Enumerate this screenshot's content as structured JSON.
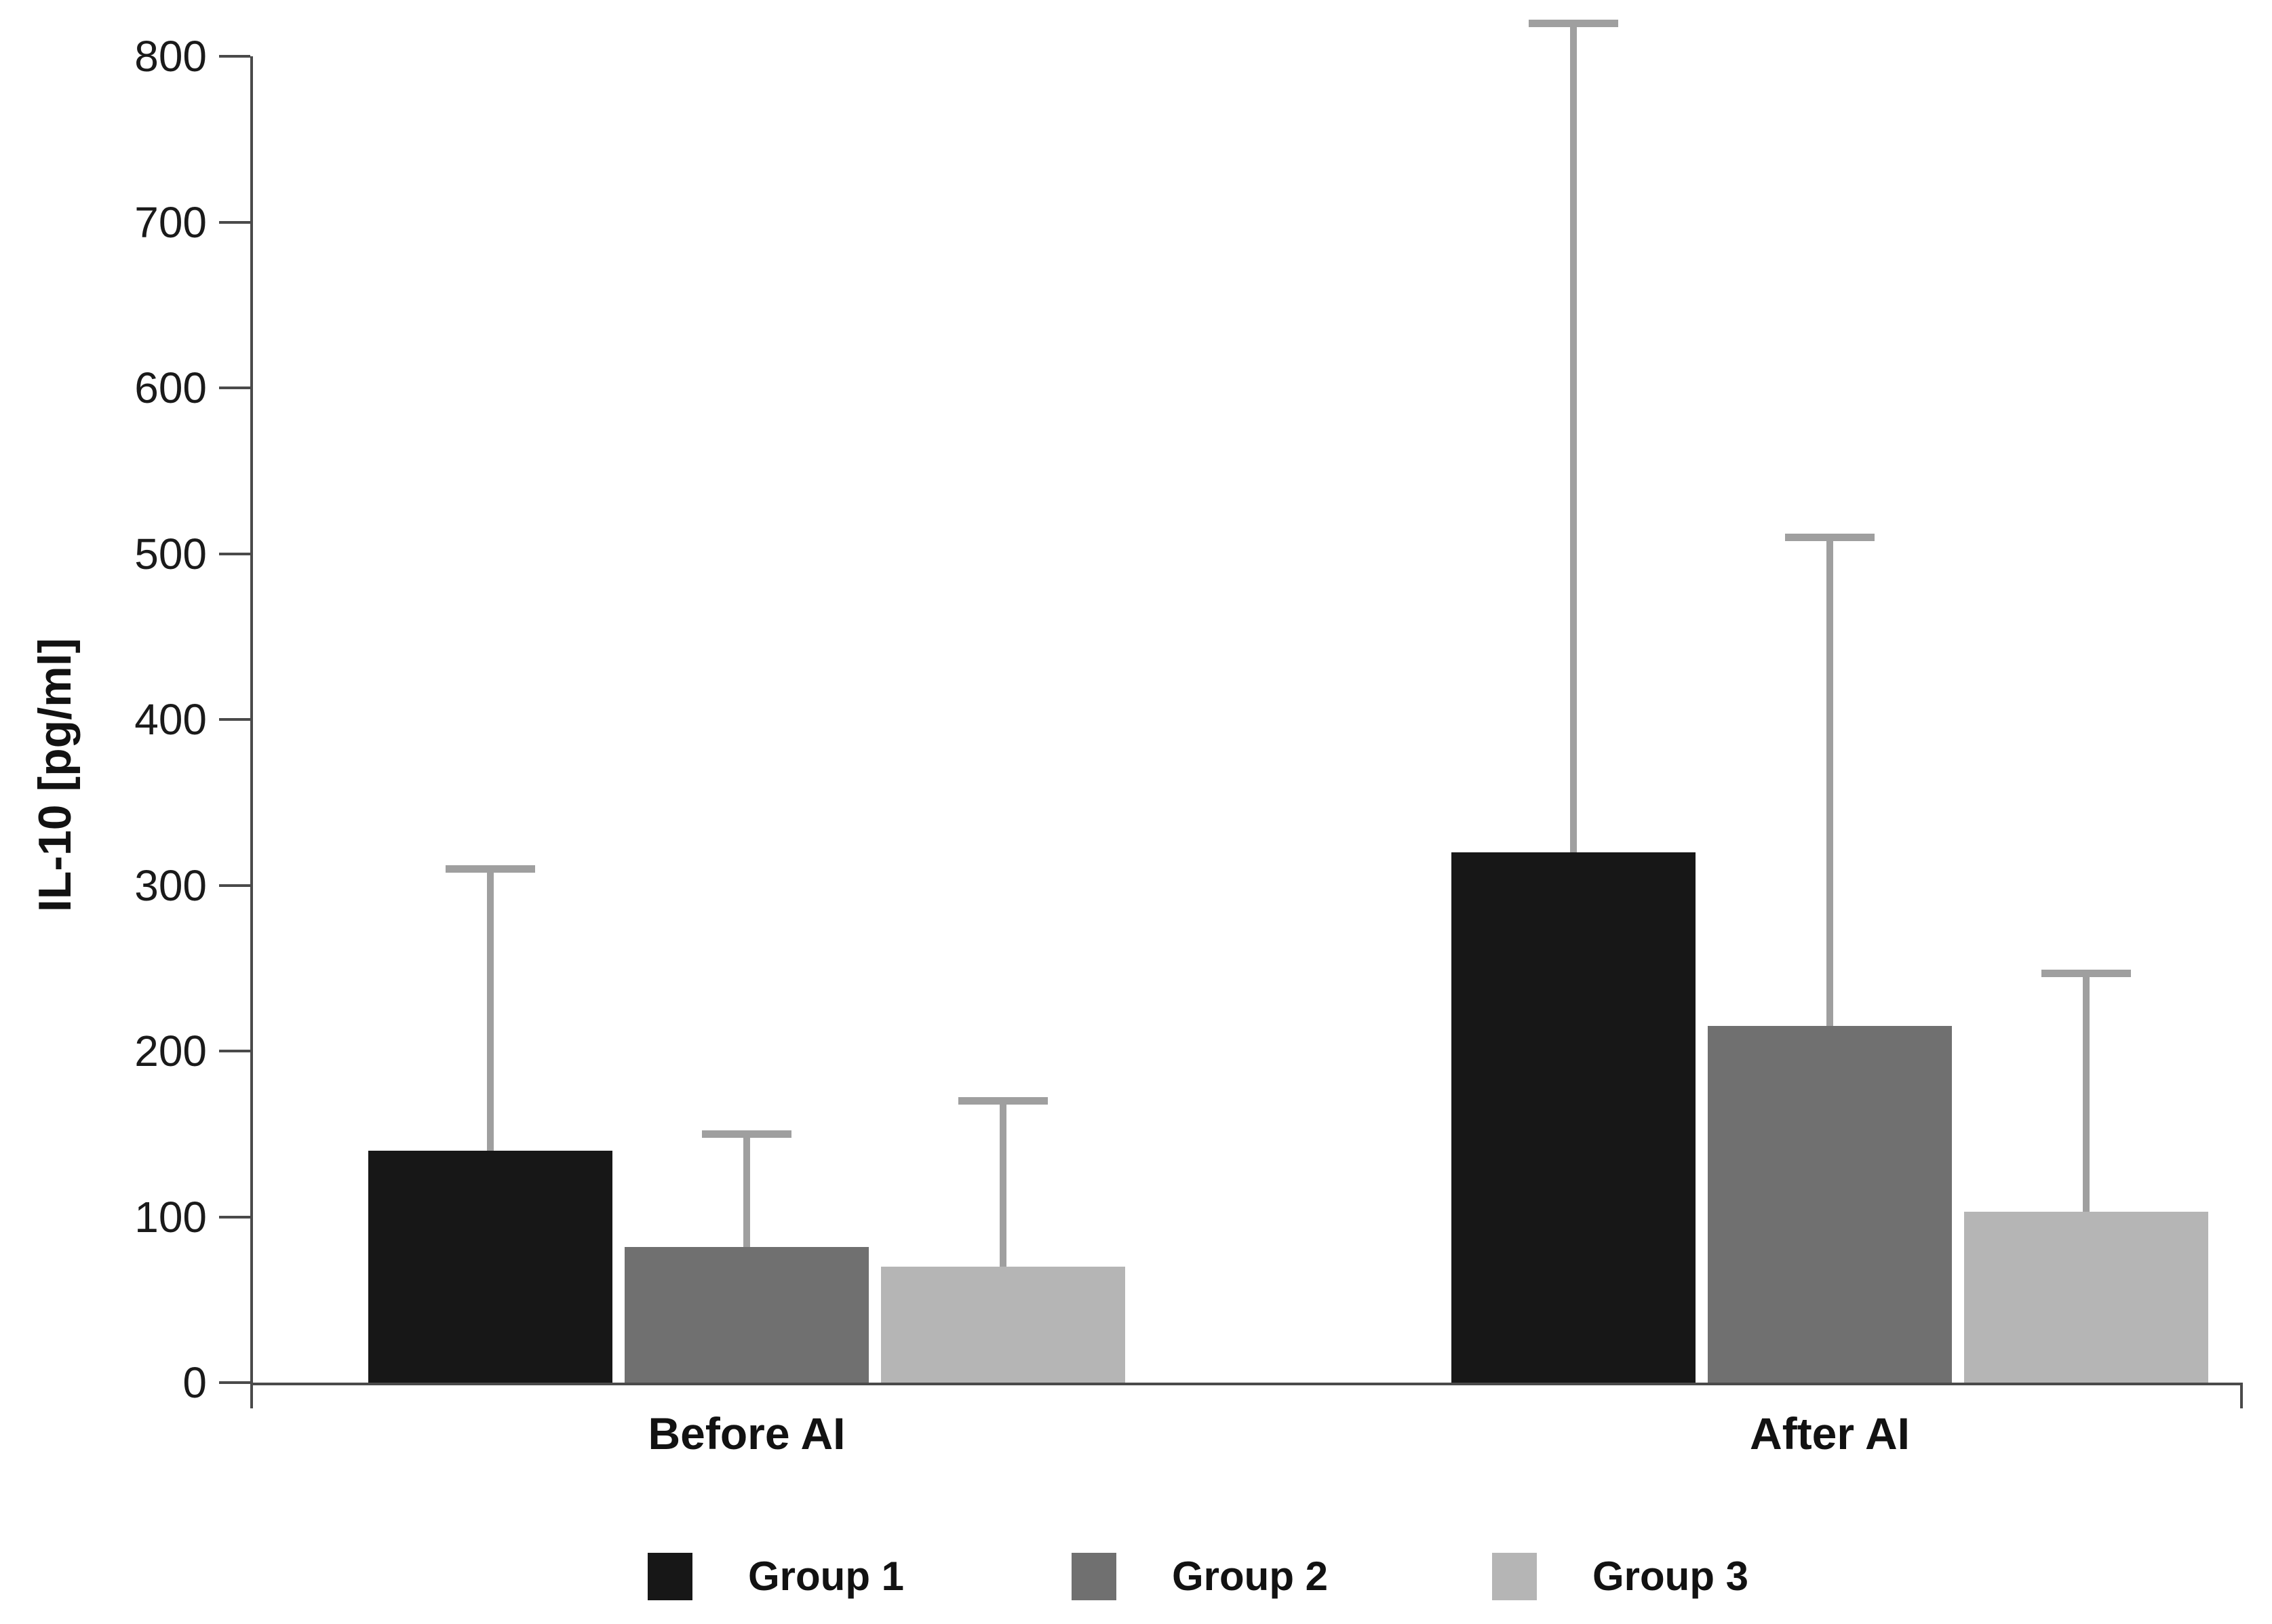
{
  "figure": {
    "background": "#ffffff",
    "axis_color": "#4a4a4a",
    "text_color": "#121212"
  },
  "chart_data": {
    "type": "bar",
    "title": "",
    "xlabel": "",
    "ylabel": "IL-10 [pg/ml]",
    "ylim": [
      0,
      800
    ],
    "yticks": [
      0,
      100,
      200,
      300,
      400,
      500,
      600,
      700,
      800
    ],
    "grid": false,
    "legend_position": "bottom",
    "categories": [
      "Before AI",
      "After AI"
    ],
    "series": [
      {
        "name": "Group 1",
        "color": "#171717",
        "values": [
          140,
          320
        ],
        "error_upper": [
          310,
          820
        ]
      },
      {
        "name": "Group 2",
        "color": "#707070",
        "values": [
          82,
          215
        ],
        "error_upper": [
          150,
          510
        ]
      },
      {
        "name": "Group 3",
        "color": "#b5b5b5",
        "values": [
          70,
          103
        ],
        "error_upper": [
          170,
          247
        ]
      }
    ],
    "error_bar_color": "#9f9f9f"
  }
}
